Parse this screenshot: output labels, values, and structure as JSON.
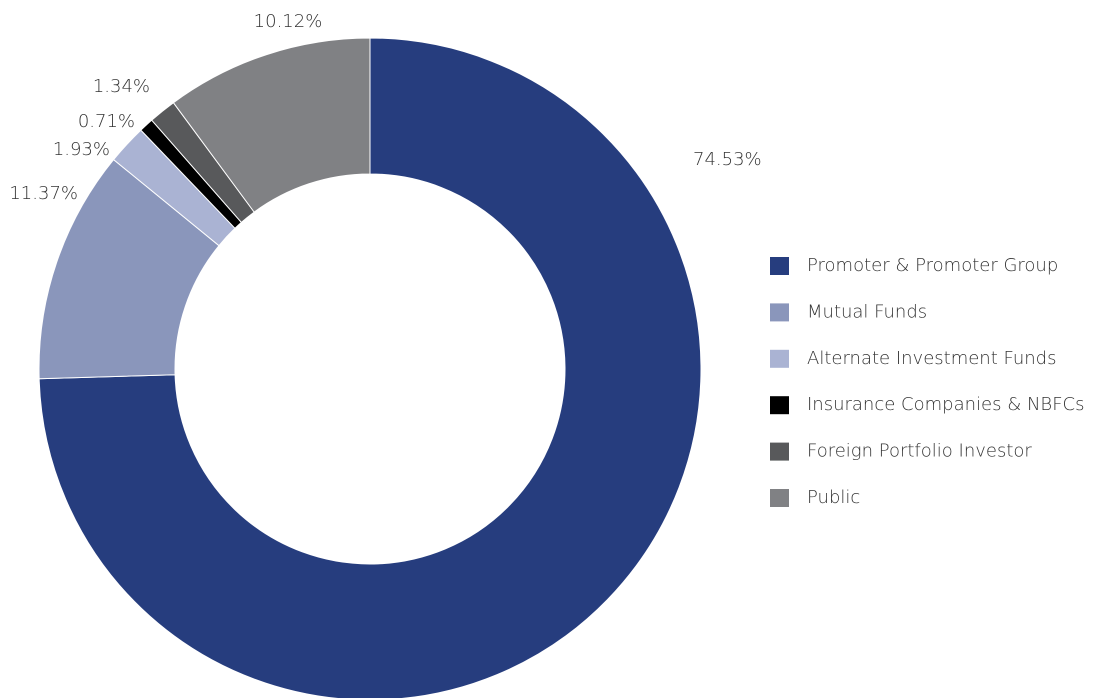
{
  "chart_data": {
    "type": "donut",
    "categories": [
      "Promoter & Promoter Group",
      "Mutual Funds",
      "Alternate Investment Funds",
      "Insurance Companies & NBFCs",
      "Foreign Portfolio Investor",
      "Public"
    ],
    "values": [
      74.53,
      11.37,
      1.93,
      0.71,
      1.34,
      10.12
    ],
    "value_labels": [
      "74.53%",
      "11.37%",
      "1.93%",
      "0.71%",
      "1.34%",
      "10.12%"
    ],
    "colors": [
      "#263d7e",
      "#8a96bb",
      "#aab3d3",
      "#000000",
      "#58595b",
      "#808184"
    ],
    "legend": "right"
  }
}
